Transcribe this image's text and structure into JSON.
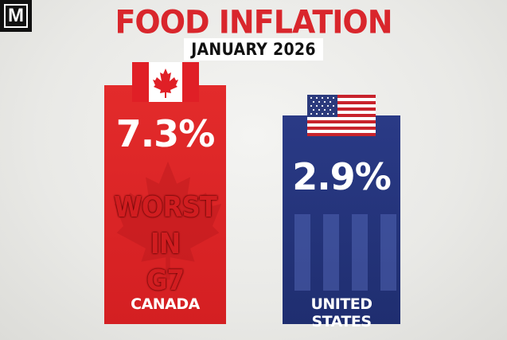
{
  "badge": {
    "letter": "M"
  },
  "chart_data": {
    "type": "bar",
    "title": "FOOD INFLATION",
    "subtitle": "JANUARY 2026",
    "categories": [
      "CANADA",
      "UNITED STATES"
    ],
    "values": [
      7.3,
      2.9
    ],
    "value_labels": [
      "7.3%",
      "2.9%"
    ],
    "unit": "%",
    "annotations": [
      {
        "category": "CANADA",
        "text_line1": "WORST IN",
        "text_line2": "G7"
      }
    ],
    "colors": {
      "CANADA": "#d92327",
      "UNITED STATES": "#233378"
    },
    "flags": {
      "CANADA": "canada-flag-icon",
      "UNITED STATES": "us-flag-icon"
    },
    "title_color": "#d9262c"
  }
}
